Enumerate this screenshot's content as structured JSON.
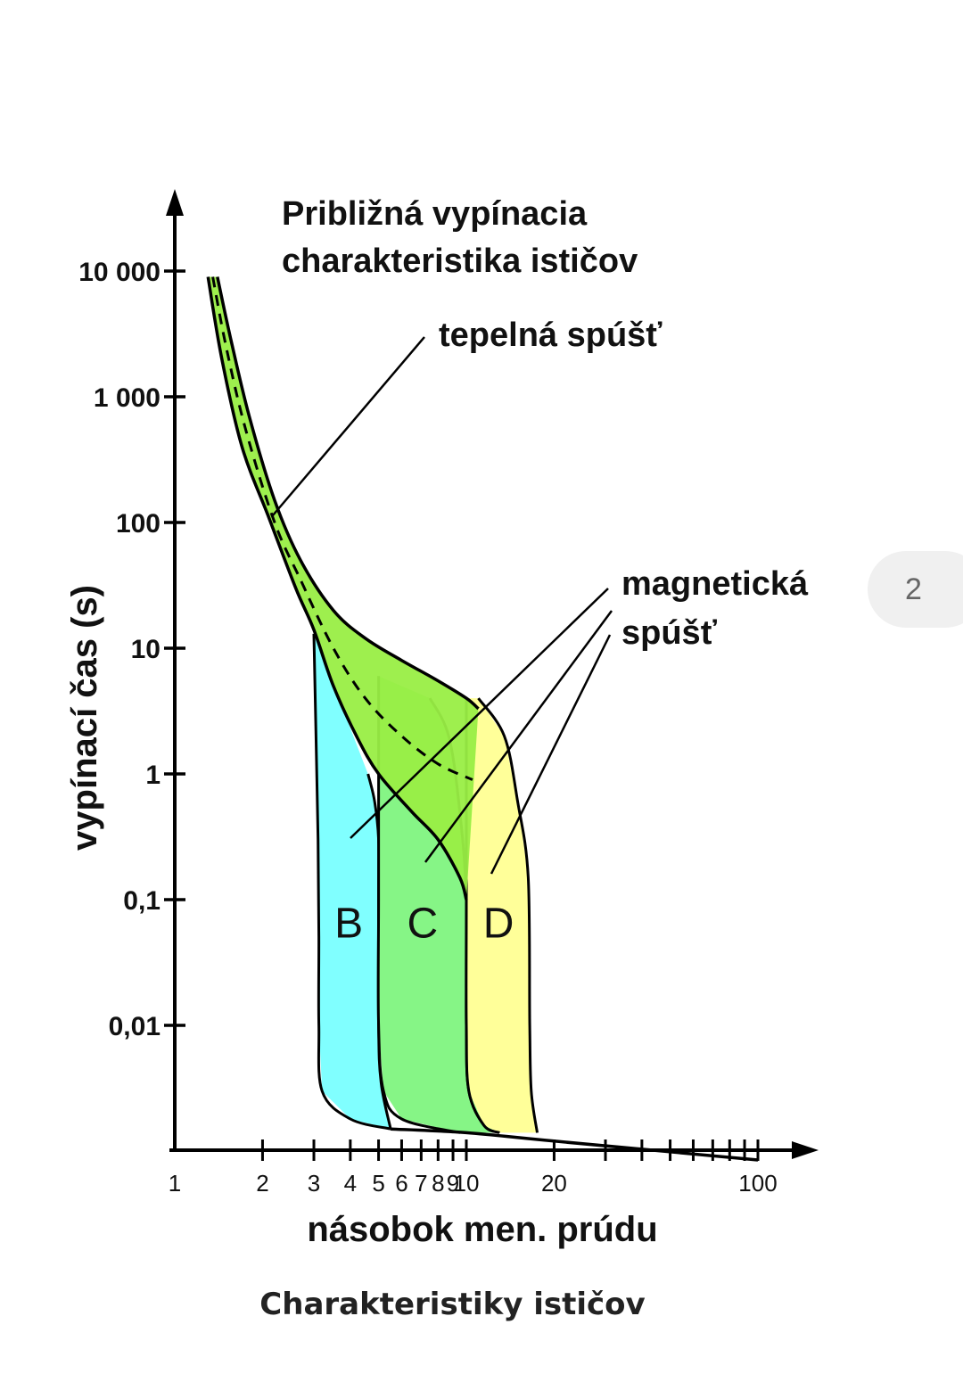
{
  "caption": "Charakteristiky ističov",
  "page_badge": "2",
  "chart_data": {
    "type": "area",
    "title_lines": [
      "Približná vypínacia",
      "charakteristika ističov"
    ],
    "xlabel": "násobok men. prúdu",
    "ylabel": "vypínací čas (s)",
    "x_scale": "log",
    "y_scale": "log",
    "xlim": [
      1,
      100
    ],
    "ylim": [
      0.01,
      10000
    ],
    "x_tick_labels": [
      {
        "value": 1,
        "label": "1"
      },
      {
        "value": 2,
        "label": "2"
      },
      {
        "value": 3,
        "label": "3"
      },
      {
        "value": 4,
        "label": "4"
      },
      {
        "value": 5,
        "label": "5"
      },
      {
        "value": 6,
        "label": "6"
      },
      {
        "value": 7,
        "label": "7"
      },
      {
        "value": 8,
        "label": "8"
      },
      {
        "value": 9,
        "label": "9"
      },
      {
        "value": 10,
        "label": "10"
      },
      {
        "value": 20,
        "label": "20"
      },
      {
        "value": 100,
        "label": "100"
      }
    ],
    "x_minor_ticks": [
      30,
      40,
      50,
      60,
      70,
      80,
      90
    ],
    "y_tick_labels": [
      {
        "value": 10000,
        "label": "10 000"
      },
      {
        "value": 1000,
        "label": "1 000"
      },
      {
        "value": 100,
        "label": "100"
      },
      {
        "value": 10,
        "label": "10"
      },
      {
        "value": 1,
        "label": "1"
      },
      {
        "value": 0.1,
        "label": "0,1"
      },
      {
        "value": 0.01,
        "label": "0,01"
      }
    ],
    "grid": false,
    "annotations": {
      "thermal": "tepelná spúšť",
      "magnetic_lines": [
        "magnetická",
        "spúšť"
      ]
    },
    "zones": [
      {
        "name": "B",
        "color": "#80ffff",
        "left_edge": [
          [
            3,
            13
          ],
          [
            3.05,
            2
          ],
          [
            3.1,
            0.3
          ],
          [
            3.12,
            0.05
          ],
          [
            3.12,
            0.01
          ],
          [
            3.2,
            0.003
          ],
          [
            4,
            0.0018
          ],
          [
            5.5,
            0.0015
          ]
        ],
        "right_edge": [
          [
            4.6,
            1
          ],
          [
            4.85,
            0.6
          ],
          [
            5,
            0.3
          ],
          [
            5,
            0.1
          ],
          [
            5,
            0.01
          ],
          [
            5.1,
            0.0035
          ],
          [
            5.5,
            0.0015
          ]
        ]
      },
      {
        "name": "C",
        "color": "#86f586",
        "left_edge": [
          [
            5,
            6
          ],
          [
            5,
            3
          ],
          [
            5,
            1
          ],
          [
            5,
            0.1
          ],
          [
            5,
            0.01
          ],
          [
            5.2,
            0.003
          ],
          [
            6,
            0.0018
          ],
          [
            9.5,
            0.0014
          ]
        ],
        "right_edge": [
          [
            7.5,
            4
          ],
          [
            8.7,
            2
          ],
          [
            9.5,
            0.5
          ],
          [
            10,
            0.1
          ],
          [
            10,
            0.01
          ],
          [
            10.2,
            0.003
          ],
          [
            11.5,
            0.0016
          ],
          [
            13,
            0.0014
          ]
        ]
      },
      {
        "name": "D",
        "color": "#ffff99",
        "left_edge": [
          [
            10,
            4
          ],
          [
            10,
            0.1
          ],
          [
            10,
            0.01
          ],
          [
            10.2,
            0.003
          ],
          [
            11.5,
            0.0016
          ],
          [
            13,
            0.0014
          ]
        ],
        "right_edge": [
          [
            11,
            4
          ],
          [
            13.5,
            2
          ],
          [
            15,
            0.6
          ],
          [
            16.3,
            0.15
          ],
          [
            16.5,
            0.01
          ],
          [
            16.7,
            0.003
          ],
          [
            17.5,
            0.0014
          ]
        ]
      }
    ],
    "thermal_band": {
      "color": "#99ee44",
      "upper": [
        [
          1.4,
          9000
        ],
        [
          1.55,
          3000
        ],
        [
          1.8,
          700
        ],
        [
          2.2,
          150
        ],
        [
          2.7,
          50
        ],
        [
          3.5,
          20
        ],
        [
          4.5,
          12
        ],
        [
          6,
          8
        ],
        [
          8,
          5.5
        ],
        [
          10,
          4
        ],
        [
          11,
          3.3
        ]
      ],
      "lower": [
        [
          1.3,
          9000
        ],
        [
          1.45,
          2000
        ],
        [
          1.7,
          400
        ],
        [
          2.1,
          110
        ],
        [
          2.6,
          30
        ],
        [
          3,
          14
        ],
        [
          3.5,
          5
        ],
        [
          4.2,
          2
        ],
        [
          5,
          1
        ],
        [
          6.5,
          0.5
        ],
        [
          8,
          0.3
        ],
        [
          9.5,
          0.15
        ],
        [
          10,
          0.1
        ]
      ],
      "mean": [
        [
          1.35,
          9000
        ],
        [
          1.5,
          2500
        ],
        [
          1.75,
          550
        ],
        [
          2.2,
          100
        ],
        [
          2.7,
          35
        ],
        [
          3.5,
          10
        ],
        [
          4.5,
          4
        ],
        [
          6,
          2
        ],
        [
          8,
          1.2
        ],
        [
          10.5,
          0.9
        ]
      ]
    },
    "tail": [
      [
        5.5,
        0.0015
      ],
      [
        10,
        0.0014
      ],
      [
        20,
        0.0012
      ],
      [
        100,
        0.00085
      ]
    ]
  }
}
